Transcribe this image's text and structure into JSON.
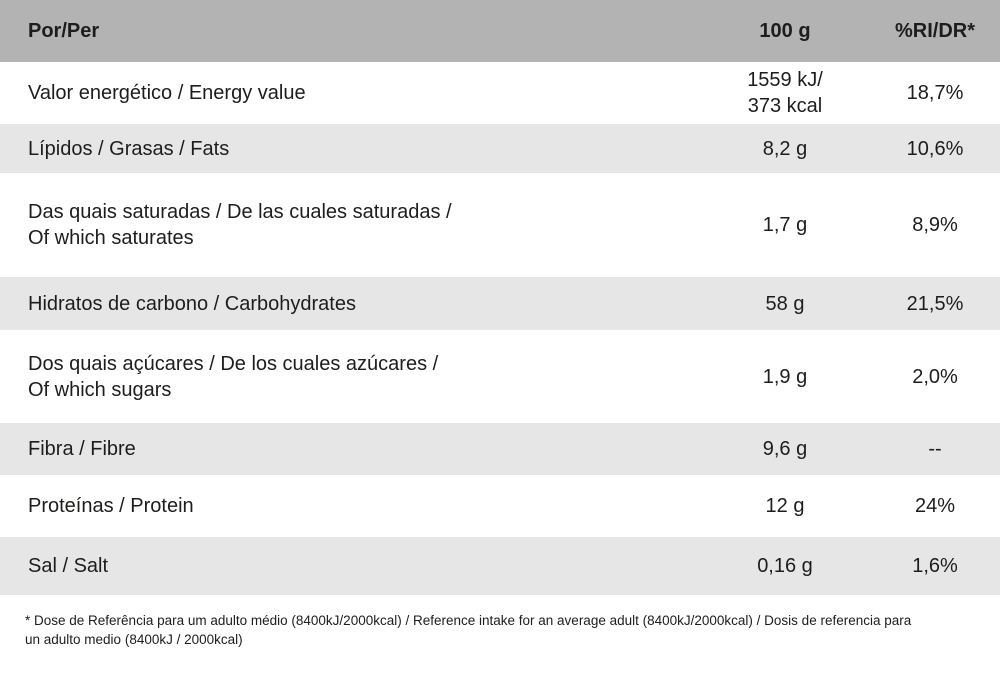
{
  "table": {
    "header": {
      "per": "Por/Per",
      "amount": "100 g",
      "ri": "%RI/DR*"
    },
    "rows": [
      {
        "label": "Valor energético / Energy value",
        "amount": "1559 kJ/\n373 kcal",
        "ri": "18,7%"
      },
      {
        "label": "Lípidos / Grasas / Fats",
        "amount": "8,2 g",
        "ri": "10,6%"
      },
      {
        "label": "Das quais saturadas / De las cuales saturadas /\nOf which saturates",
        "amount": "1,7 g",
        "ri": "8,9%"
      },
      {
        "label": "Hidratos de carbono / Carbohydrates",
        "amount": "58 g",
        "ri": "21,5%"
      },
      {
        "label": "Dos quais açúcares / De los cuales azúcares /\nOf which sugars",
        "amount": "1,9 g",
        "ri": "2,0%"
      },
      {
        "label": "Fibra / Fibre",
        "amount": "9,6 g",
        "ri": "--"
      },
      {
        "label": "Proteínas / Protein",
        "amount": "12 g",
        "ri": "24%"
      },
      {
        "label": "Sal / Salt",
        "amount": "0,16 g",
        "ri": "1,6%"
      }
    ],
    "footnote": "* Dose de Referência para um adulto médio (8400kJ/2000kcal) / Reference intake for an average adult (8400kJ/2000kcal) / Dosis de referencia para\nun adulto medio (8400kJ / 2000kcal)"
  },
  "colors": {
    "header_bg": "#b3b3b3",
    "row_alt_bg": "#e6e6e6",
    "text": "#1d1d1b",
    "bg": "#ffffff"
  }
}
